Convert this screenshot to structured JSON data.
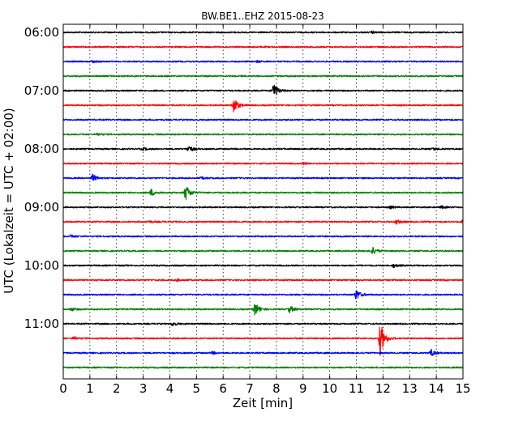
{
  "chart_data": {
    "type": "line",
    "title": "BW.BE1..EHZ 2015-08-23",
    "xlabel": "Zeit  [min]",
    "ylabel": "UTC (Lokalzeit = UTC + 02:00)",
    "xlim": [
      0,
      15
    ],
    "x_ticks": [
      "0",
      "1",
      "2",
      "3",
      "4",
      "5",
      "6",
      "7",
      "8",
      "9",
      "10",
      "11",
      "12",
      "13",
      "14",
      "15"
    ],
    "y_ticks": [
      "06:00",
      "07:00",
      "08:00",
      "09:00",
      "10:00",
      "11:00"
    ],
    "grid": "vertical dotted",
    "trace_interval_min": 15,
    "trace_colors": [
      "#000000",
      "#ff0000",
      "#0000ff",
      "#008000"
    ],
    "traces": [
      {
        "start": "06:00",
        "color": "#000000",
        "events": [
          {
            "t": 11.6,
            "amp": 0.1
          }
        ]
      },
      {
        "start": "06:15",
        "color": "#ff0000",
        "events": []
      },
      {
        "start": "06:30",
        "color": "#0000ff",
        "events": [
          {
            "t": 1.1,
            "amp": 0.12
          },
          {
            "t": 7.3,
            "amp": 0.08
          }
        ]
      },
      {
        "start": "06:45",
        "color": "#008000",
        "events": []
      },
      {
        "start": "07:00",
        "color": "#000000",
        "events": [
          {
            "t": 7.9,
            "amp": 0.85
          }
        ]
      },
      {
        "start": "07:15",
        "color": "#ff0000",
        "events": [
          {
            "t": 6.4,
            "amp": 0.85
          }
        ]
      },
      {
        "start": "07:30",
        "color": "#0000ff",
        "events": []
      },
      {
        "start": "07:45",
        "color": "#008000",
        "events": [
          {
            "t": 1.3,
            "amp": 0.1
          }
        ]
      },
      {
        "start": "08:00",
        "color": "#000000",
        "events": [
          {
            "t": 3.0,
            "amp": 0.12
          },
          {
            "t": 4.7,
            "amp": 0.38
          },
          {
            "t": 13.9,
            "amp": 0.12
          }
        ]
      },
      {
        "start": "08:15",
        "color": "#ff0000",
        "events": [
          {
            "t": 9.0,
            "amp": 0.08
          }
        ]
      },
      {
        "start": "08:30",
        "color": "#0000ff",
        "events": [
          {
            "t": 1.1,
            "amp": 0.38
          },
          {
            "t": 5.2,
            "amp": 0.12
          }
        ]
      },
      {
        "start": "08:45",
        "color": "#008000",
        "events": [
          {
            "t": 3.3,
            "amp": 0.35
          },
          {
            "t": 4.6,
            "amp": 0.85
          }
        ]
      },
      {
        "start": "09:00",
        "color": "#000000",
        "events": [
          {
            "t": 12.3,
            "amp": 0.12
          },
          {
            "t": 14.2,
            "amp": 0.12
          }
        ]
      },
      {
        "start": "09:15",
        "color": "#ff0000",
        "events": [
          {
            "t": 3.2,
            "amp": 0.1
          },
          {
            "t": 12.5,
            "amp": 0.22
          },
          {
            "t": 15.0,
            "amp": 0.3
          }
        ]
      },
      {
        "start": "09:30",
        "color": "#0000ff",
        "events": [
          {
            "t": 0.3,
            "amp": 0.12
          }
        ]
      },
      {
        "start": "09:45",
        "color": "#008000",
        "events": [
          {
            "t": 11.6,
            "amp": 0.4
          }
        ]
      },
      {
        "start": "10:00",
        "color": "#000000",
        "events": [
          {
            "t": 12.4,
            "amp": 0.18
          }
        ]
      },
      {
        "start": "10:15",
        "color": "#ff0000",
        "events": [
          {
            "t": 4.3,
            "amp": 0.1
          }
        ]
      },
      {
        "start": "10:30",
        "color": "#0000ff",
        "events": [
          {
            "t": 11.0,
            "amp": 0.55
          }
        ]
      },
      {
        "start": "10:45",
        "color": "#008000",
        "events": [
          {
            "t": 0.3,
            "amp": 0.15
          },
          {
            "t": 7.2,
            "amp": 0.7
          },
          {
            "t": 8.5,
            "amp": 0.35
          }
        ]
      },
      {
        "start": "11:00",
        "color": "#000000",
        "events": [
          {
            "t": 4.1,
            "amp": 0.2
          }
        ]
      },
      {
        "start": "11:15",
        "color": "#ff0000",
        "events": [
          {
            "t": 0.4,
            "amp": 0.15
          },
          {
            "t": 11.9,
            "amp": 1.8
          }
        ]
      },
      {
        "start": "11:30",
        "color": "#0000ff",
        "events": [
          {
            "t": 5.6,
            "amp": 0.12
          },
          {
            "t": 13.8,
            "amp": 0.35
          }
        ]
      },
      {
        "start": "11:45",
        "color": "#008000",
        "events": []
      }
    ]
  }
}
